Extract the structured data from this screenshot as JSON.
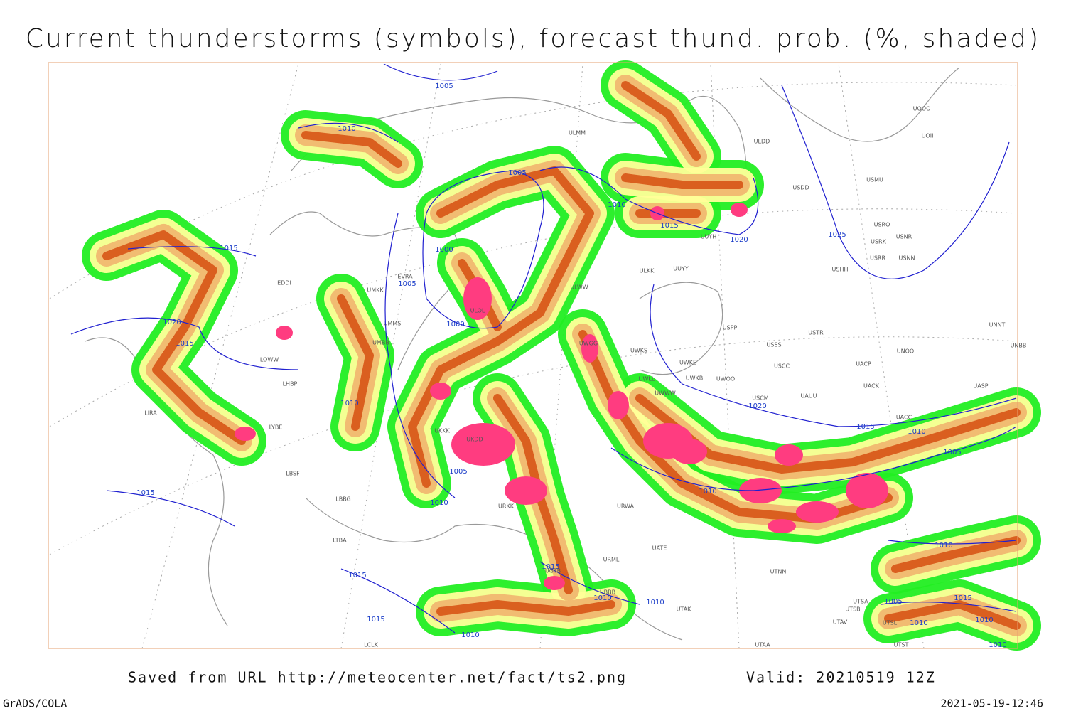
{
  "header": {
    "title": "Current thunderstorms (symbols), forecast thund. prob. (%, shaded)"
  },
  "isobar_labels": [
    "1005",
    "1010",
    "1005",
    "1015",
    "1000",
    "1005",
    "1000",
    "1020",
    "1015",
    "1010",
    "1005",
    "1010",
    "1015",
    "1010",
    "1015",
    "1020",
    "1025",
    "1020",
    "1015",
    "1010",
    "1005",
    "1010",
    "1015",
    "1015",
    "1015",
    "1010",
    "1010",
    "1010",
    "1010",
    "1015",
    "1005",
    "1010",
    "1010",
    "1010"
  ],
  "stations": [
    "ULMM",
    "ULDD",
    "USDD",
    "USMU",
    "UOOO",
    "UOII",
    "USRO",
    "USRK",
    "USNR",
    "USRR",
    "USNN",
    "USHH",
    "UUYH",
    "ULKK",
    "UUYY",
    "ULWW",
    "USPP",
    "USSS",
    "USTR",
    "USCC",
    "UACP",
    "UACK",
    "UNOO",
    "UNNT",
    "UNBB",
    "UASP",
    "UACC",
    "UWKS",
    "UWKE",
    "UWKB",
    "UWOO",
    "UWLL",
    "UWWW",
    "USCM",
    "UAUU",
    "UWGG",
    "ULOL",
    "UMKK",
    "UMMS",
    "UMBB",
    "EVRA",
    "EDDI",
    "LOWW",
    "LHBP",
    "LIRA",
    "LYBE",
    "LBSF",
    "LBBG",
    "LTBA",
    "UKKK",
    "UKDD",
    "URKK",
    "URWA",
    "URML",
    "UATE",
    "UTAK",
    "UTNN",
    "UTSA",
    "UTSB",
    "UTAV",
    "UTSL",
    "UTST",
    "UTAA",
    "UBBB",
    "UGTB",
    "LCLK"
  ],
  "footer": {
    "source": "Saved from URL http://meteocenter.net/fact/ts2.png",
    "valid": "Valid: 20210519 12Z",
    "software": "GrADS/COLA",
    "timestamp": "2021-05-19-12:46"
  }
}
